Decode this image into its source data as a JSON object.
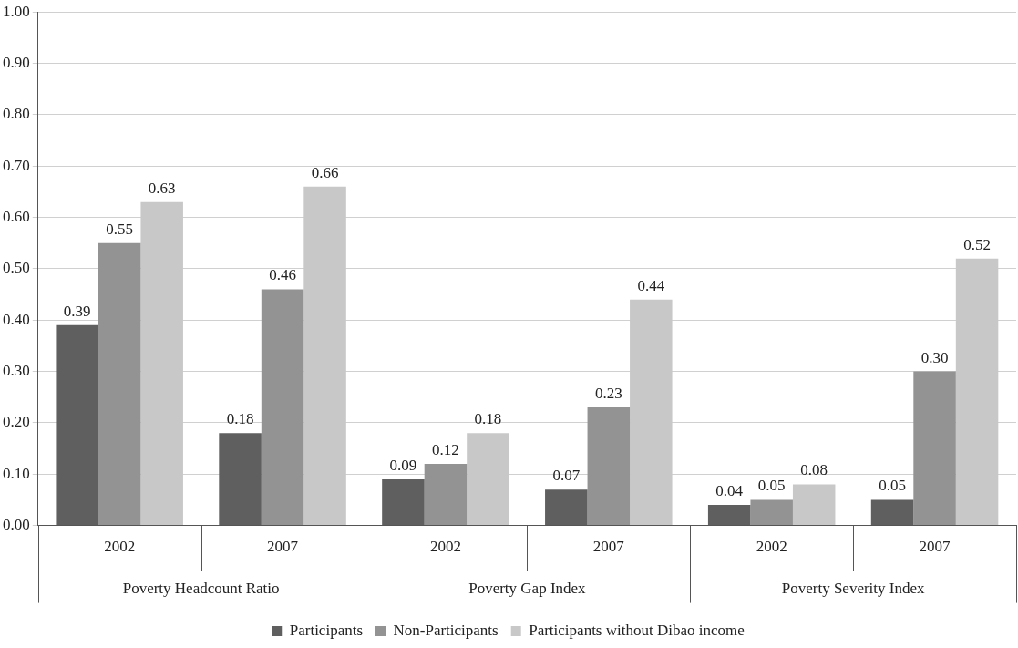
{
  "chart_data": {
    "type": "bar",
    "categories": [
      "2002",
      "2007",
      "2002",
      "2007",
      "2002",
      "2007"
    ],
    "series": [
      {
        "name": "Participants",
        "color": "#5f5f5f",
        "values": [
          0.39,
          0.18,
          0.09,
          0.07,
          0.04,
          0.05
        ],
        "value_labels": [
          "0.39",
          "0.18",
          "0.09",
          "0.07",
          "0.04",
          "0.05"
        ]
      },
      {
        "name": "Non-Participants",
        "color": "#939393",
        "values": [
          0.55,
          0.46,
          0.12,
          0.23,
          0.05,
          0.3
        ],
        "value_labels": [
          "0.55",
          "0.46",
          "0.12",
          "0.23",
          "0.05",
          "0.30"
        ]
      },
      {
        "name": "Participants without Dibao income",
        "color": "#c8c8c8",
        "values": [
          0.63,
          0.66,
          0.18,
          0.44,
          0.08,
          0.52
        ],
        "value_labels": [
          "0.63",
          "0.66",
          "0.18",
          "0.44",
          "0.08",
          "0.52"
        ]
      }
    ],
    "annotations": [
      "Poverty Headcount Ratio",
      "Poverty Gap Index",
      "Poverty Severity Index"
    ],
    "ylim": [
      0,
      1
    ],
    "yticks": [
      {
        "value": 0,
        "label": "0.00"
      },
      {
        "value": 0.1,
        "label": "0.10"
      },
      {
        "value": 0.2,
        "label": "0.20"
      },
      {
        "value": 0.3,
        "label": "0.30"
      },
      {
        "value": 0.4,
        "label": "0.40"
      },
      {
        "value": 0.5,
        "label": "0.50"
      },
      {
        "value": 0.6,
        "label": "0.60"
      },
      {
        "value": 0.7,
        "label": "0.70"
      },
      {
        "value": 0.8,
        "label": "0.80"
      },
      {
        "value": 0.9,
        "label": "0.90"
      },
      {
        "value": 1,
        "label": "1.00"
      }
    ],
    "grid": "y",
    "legend": "bottom"
  }
}
